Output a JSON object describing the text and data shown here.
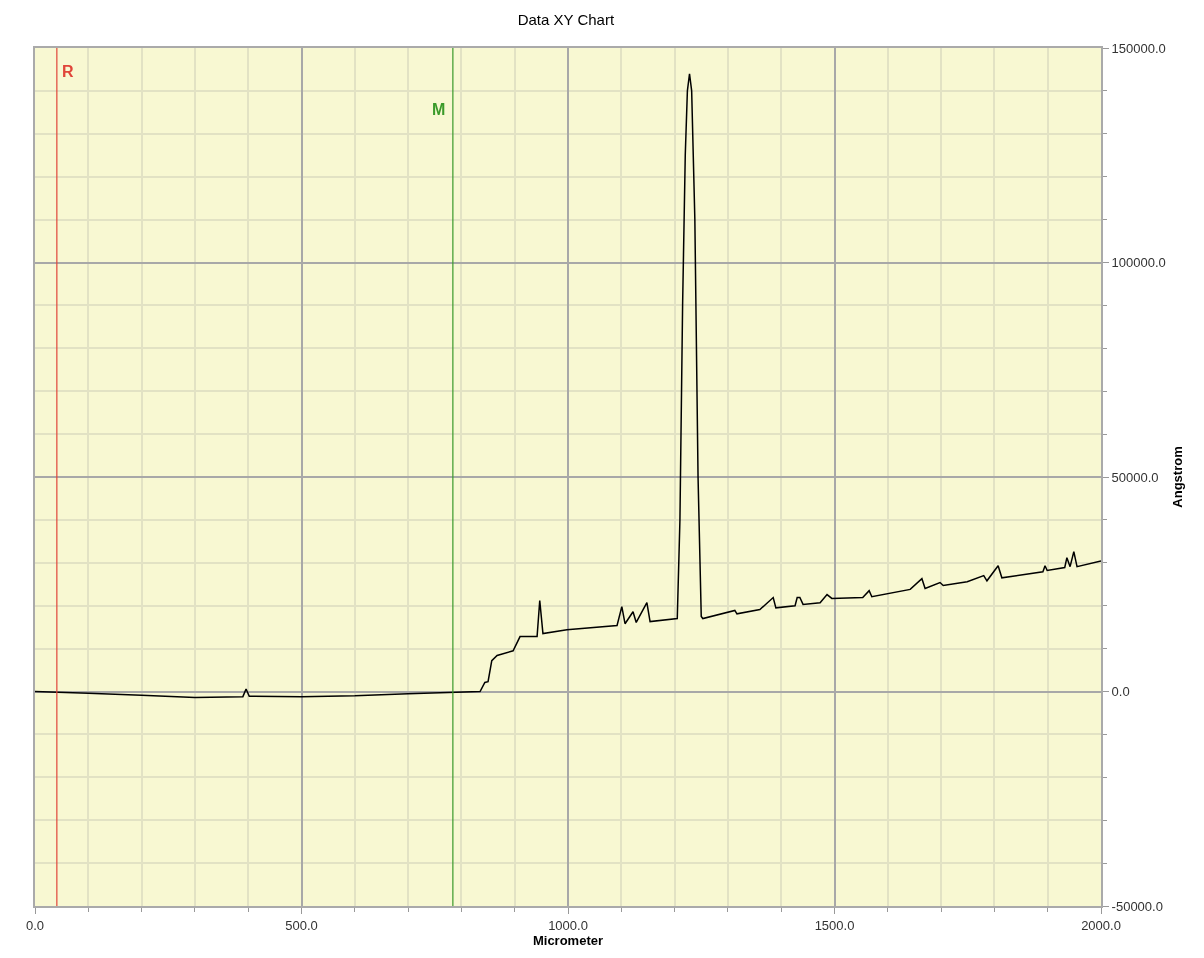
{
  "chart_data": {
    "type": "line",
    "title": "Data XY Chart",
    "xlabel": "Micrometer",
    "ylabel": "Angstrom",
    "x": [
      0,
      100,
      200,
      300,
      390,
      396,
      402,
      500,
      600,
      700,
      760,
      835,
      844,
      850,
      857,
      867,
      897,
      910,
      942,
      947,
      953,
      998,
      1092,
      1101,
      1107,
      1122,
      1128,
      1148,
      1154,
      1205,
      1210,
      1215,
      1220,
      1224,
      1228,
      1232,
      1238,
      1244,
      1250,
      1253,
      1313,
      1317,
      1360,
      1385,
      1390,
      1426,
      1430,
      1435,
      1441,
      1473,
      1486,
      1495,
      1553,
      1565,
      1570,
      1642,
      1664,
      1670,
      1698,
      1704,
      1749,
      1780,
      1786,
      1807,
      1814,
      1891,
      1895,
      1899,
      1932,
      1936,
      1942,
      1949,
      1955,
      2000
    ],
    "series": [
      {
        "color": "#000000",
        "values": [
          0,
          -400,
          -900,
          -1400,
          -1200,
          600,
          -1100,
          -1200,
          -1000,
          -500,
          -300,
          0,
          2100,
          2300,
          7200,
          8400,
          9500,
          12800,
          12800,
          21200,
          13500,
          14400,
          15400,
          19800,
          15800,
          18600,
          16100,
          20700,
          16300,
          17000,
          40000,
          90000,
          125000,
          140000,
          144000,
          140000,
          110000,
          50000,
          17500,
          17000,
          18900,
          18100,
          19100,
          21900,
          19500,
          20000,
          21900,
          21900,
          20300,
          20700,
          22600,
          21700,
          21900,
          23500,
          22100,
          23800,
          26300,
          24000,
          25400,
          24700,
          25600,
          27000,
          25800,
          29300,
          26500,
          27900,
          29300,
          28200,
          28900,
          31200,
          29100,
          32600,
          29100,
          30400
        ]
      }
    ],
    "xlim": [
      0,
      2000
    ],
    "ylim": [
      -50000,
      150000
    ],
    "xticks": [
      {
        "value": 0,
        "label": "0.0"
      },
      {
        "value": 100,
        "label": null
      },
      {
        "value": 200,
        "label": null
      },
      {
        "value": 300,
        "label": null
      },
      {
        "value": 400,
        "label": null
      },
      {
        "value": 500,
        "label": "500.0"
      },
      {
        "value": 600,
        "label": null
      },
      {
        "value": 700,
        "label": null
      },
      {
        "value": 800,
        "label": null
      },
      {
        "value": 900,
        "label": null
      },
      {
        "value": 1000,
        "label": "1000.0"
      },
      {
        "value": 1100,
        "label": null
      },
      {
        "value": 1200,
        "label": null
      },
      {
        "value": 1300,
        "label": null
      },
      {
        "value": 1400,
        "label": null
      },
      {
        "value": 1500,
        "label": "1500.0"
      },
      {
        "value": 1600,
        "label": null
      },
      {
        "value": 1700,
        "label": null
      },
      {
        "value": 1800,
        "label": null
      },
      {
        "value": 1900,
        "label": null
      },
      {
        "value": 2000,
        "label": "2000.0"
      }
    ],
    "yticks": [
      {
        "value": -50000,
        "label": "-50000.0"
      },
      {
        "value": -40000,
        "label": null
      },
      {
        "value": -30000,
        "label": null
      },
      {
        "value": -20000,
        "label": null
      },
      {
        "value": -10000,
        "label": null
      },
      {
        "value": 0,
        "label": "0.0"
      },
      {
        "value": 10000,
        "label": null
      },
      {
        "value": 20000,
        "label": null
      },
      {
        "value": 30000,
        "label": null
      },
      {
        "value": 40000,
        "label": null
      },
      {
        "value": 50000,
        "label": "50000.0"
      },
      {
        "value": 60000,
        "label": null
      },
      {
        "value": 70000,
        "label": null
      },
      {
        "value": 80000,
        "label": null
      },
      {
        "value": 90000,
        "label": null
      },
      {
        "value": 100000,
        "label": "100000.0"
      },
      {
        "value": 110000,
        "label": null
      },
      {
        "value": 120000,
        "label": null
      },
      {
        "value": 130000,
        "label": null
      },
      {
        "value": 140000,
        "label": null
      },
      {
        "value": 150000,
        "label": "150000.0"
      }
    ],
    "ref_lines": [
      {
        "axis": "x",
        "value": 41,
        "label": "R",
        "color": "#e0463a"
      },
      {
        "axis": "x",
        "value": 784,
        "label": "M",
        "color": "#3a9a2a"
      }
    ],
    "grid": true,
    "marker": "none",
    "line_style": "solid"
  }
}
